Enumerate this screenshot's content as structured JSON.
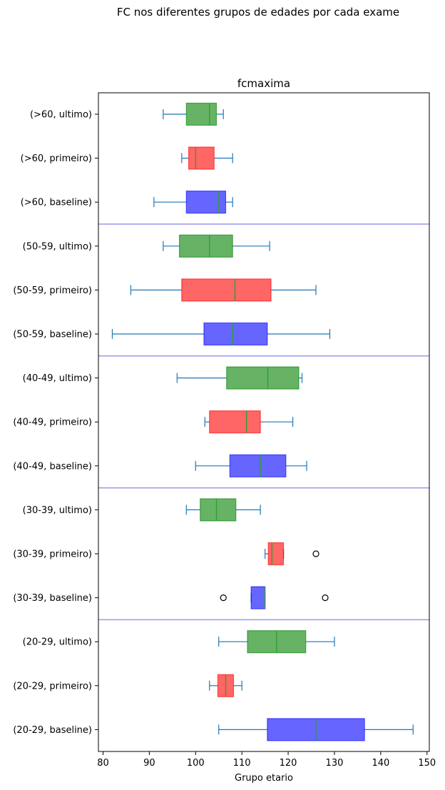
{
  "chart_data": {
    "type": "boxplot",
    "suptitle": "FC nos diferentes grupos de edades por cada exame",
    "title": "fcmaxima",
    "xlabel": "Grupo etario",
    "ylabel": "",
    "xlim": [
      79,
      150.5
    ],
    "xticks": [
      80,
      90,
      100,
      110,
      120,
      130,
      140,
      150
    ],
    "orientation": "horizontal",
    "grid": false,
    "colors": {
      "ultimo": "#008000",
      "primeiro": "#ff0000",
      "baseline": "#0000ff",
      "whisker": "#1f77b4",
      "separator": "#9999ee"
    },
    "categories": [
      "(>60, ultimo)",
      "(>60, primeiro)",
      "(>60, baseline)",
      "(50-59, ultimo)",
      "(50-59, primeiro)",
      "(50-59, baseline)",
      "(40-49, ultimo)",
      "(40-49, primeiro)",
      "(40-49, baseline)",
      "(30-39, ultimo)",
      "(30-39, primeiro)",
      "(30-39, baseline)",
      "(20-29, ultimo)",
      "(20-29, primeiro)",
      "(20-29, baseline)"
    ],
    "boxes": [
      {
        "group": "ultimo",
        "whislo": 93,
        "q1": 98,
        "med": 103,
        "q3": 104.5,
        "whishi": 106,
        "fliers": []
      },
      {
        "group": "primeiro",
        "whislo": 97,
        "q1": 98.5,
        "med": 100,
        "q3": 104,
        "whishi": 108,
        "fliers": []
      },
      {
        "group": "baseline",
        "whislo": 91,
        "q1": 98,
        "med": 105,
        "q3": 106.5,
        "whishi": 108,
        "fliers": []
      },
      {
        "group": "ultimo",
        "whislo": 93,
        "q1": 96.5,
        "med": 103,
        "q3": 108,
        "whishi": 116,
        "fliers": []
      },
      {
        "group": "primeiro",
        "whislo": 86,
        "q1": 97,
        "med": 108.5,
        "q3": 116.3,
        "whishi": 126,
        "fliers": []
      },
      {
        "group": "baseline",
        "whislo": 82,
        "q1": 101.8,
        "med": 108,
        "q3": 115.5,
        "whishi": 129,
        "fliers": []
      },
      {
        "group": "ultimo",
        "whislo": 96,
        "q1": 106.7,
        "med": 115.6,
        "q3": 122.3,
        "whishi": 123,
        "fliers": []
      },
      {
        "group": "primeiro",
        "whislo": 102,
        "q1": 103,
        "med": 111,
        "q3": 114,
        "whishi": 121,
        "fliers": []
      },
      {
        "group": "baseline",
        "whislo": 100,
        "q1": 107.4,
        "med": 114,
        "q3": 119.5,
        "whishi": 124,
        "fliers": []
      },
      {
        "group": "ultimo",
        "whislo": 98,
        "q1": 101,
        "med": 104.5,
        "q3": 108.7,
        "whishi": 114,
        "fliers": []
      },
      {
        "group": "primeiro",
        "whislo": 115,
        "q1": 115.7,
        "med": 116.5,
        "q3": 119,
        "whishi": 119,
        "fliers": [
          126
        ]
      },
      {
        "group": "baseline",
        "whislo": 112,
        "q1": 112,
        "med": 115,
        "q3": 115,
        "whishi": 115,
        "fliers": [
          106,
          128
        ]
      },
      {
        "group": "ultimo",
        "whislo": 105,
        "q1": 111.2,
        "med": 117.5,
        "q3": 123.8,
        "whishi": 130,
        "fliers": []
      },
      {
        "group": "primeiro",
        "whislo": 103,
        "q1": 104.8,
        "med": 106.5,
        "q3": 108.2,
        "whishi": 110,
        "fliers": []
      },
      {
        "group": "baseline",
        "whislo": 105,
        "q1": 115.5,
        "med": 126,
        "q3": 136.5,
        "whishi": 147,
        "fliers": []
      }
    ],
    "separators_after": [
      3,
      6,
      9,
      12
    ]
  }
}
